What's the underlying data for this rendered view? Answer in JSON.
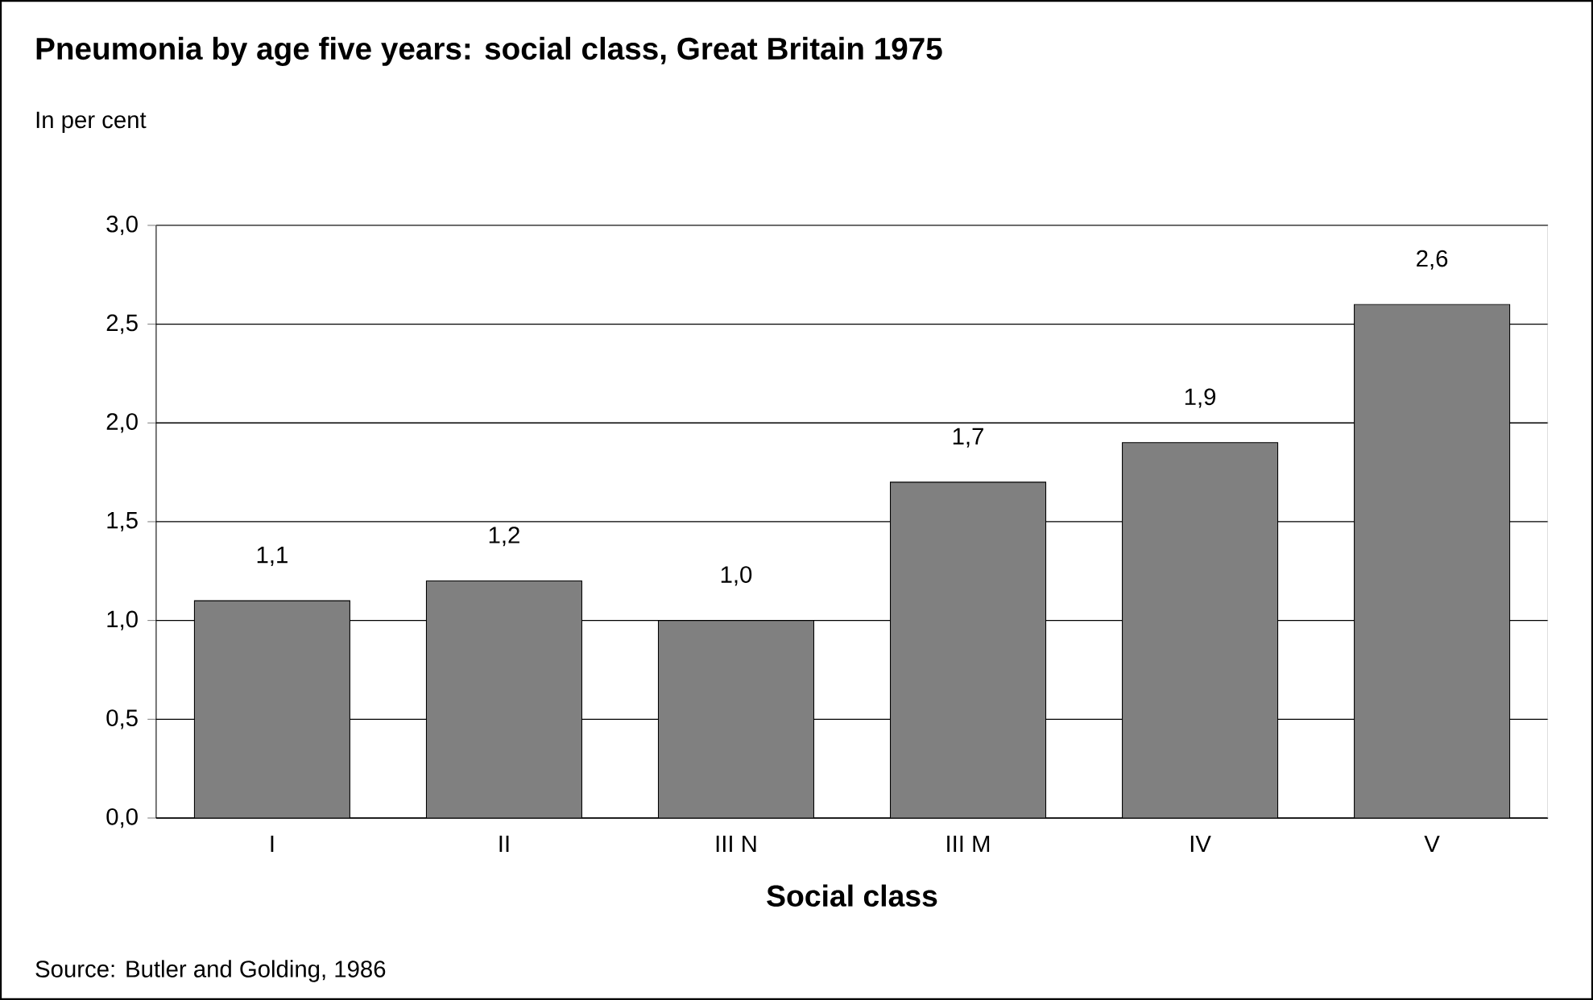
{
  "chart_data": {
    "type": "bar",
    "title": "Pneumonia by age five years: social class, Great Britain 1975",
    "subtitle": "In per cent",
    "xlabel": "Social class",
    "categories": [
      "I",
      "II",
      "III N",
      "III M",
      "IV",
      "V"
    ],
    "values": [
      1.1,
      1.2,
      1.0,
      1.7,
      1.9,
      2.6
    ],
    "value_labels": [
      "1,1",
      "1,2",
      "1,0",
      "1,7",
      "1,9",
      "2,6"
    ],
    "color": "#808080",
    "ylim": [
      0,
      3
    ],
    "yticks": [
      {
        "value": 0,
        "label": "0,0"
      },
      {
        "value": 0.5,
        "label": "0,5"
      },
      {
        "value": 1,
        "label": "1,0"
      },
      {
        "value": 1.5,
        "label": "1,5"
      },
      {
        "value": 2,
        "label": "2,0"
      },
      {
        "value": 2.5,
        "label": "2,5"
      },
      {
        "value": 3,
        "label": "3,0"
      }
    ],
    "grid": "y",
    "annotations": [
      "Source: Butler and Golding, 1986"
    ]
  }
}
